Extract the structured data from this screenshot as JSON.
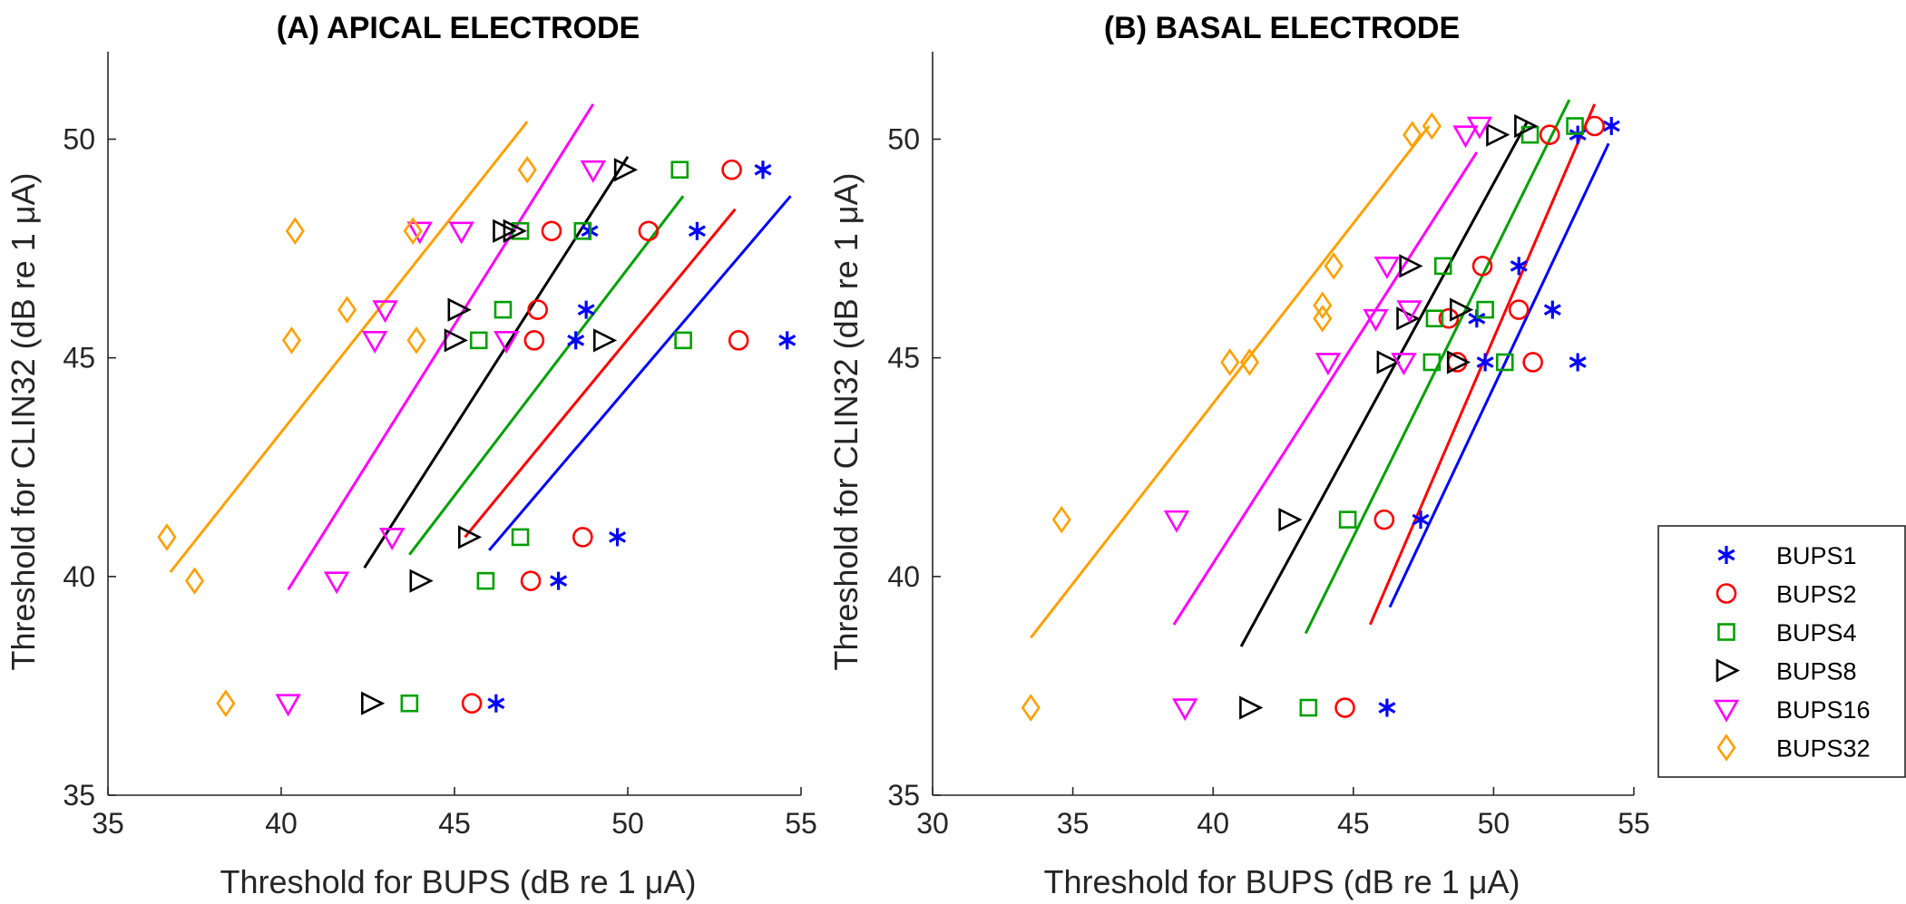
{
  "chart_data": [
    {
      "type": "scatter",
      "title": "(A) APICAL ELECTRODE",
      "xlabel": "Threshold for BUPS (dB re 1 μA)",
      "ylabel": "Threshold for CLIN32 (dB re 1 μA)",
      "xlim": [
        35,
        55
      ],
      "ylim": [
        35,
        52
      ],
      "xticks": [
        "35",
        "40",
        "45",
        "50",
        "55"
      ],
      "yticks": [
        "35",
        "40",
        "45",
        "50"
      ],
      "series": [
        {
          "name": "BUPS1",
          "color": "#0000FF",
          "marker": "asterisk",
          "points": [
            [
              53.9,
              49.3
            ],
            [
              48.9,
              47.9
            ],
            [
              52.0,
              47.9
            ],
            [
              48.8,
              46.1
            ],
            [
              48.5,
              45.4
            ],
            [
              54.6,
              45.4
            ],
            [
              49.7,
              40.9
            ],
            [
              48.0,
              39.9
            ],
            [
              46.2,
              37.1
            ]
          ],
          "fit_line": [
            [
              46.0,
              40.6
            ],
            [
              54.7,
              48.7
            ]
          ]
        },
        {
          "name": "BUPS2",
          "color": "#FF0000",
          "marker": "circle",
          "points": [
            [
              53.0,
              49.3
            ],
            [
              47.8,
              47.9
            ],
            [
              50.6,
              47.9
            ],
            [
              47.4,
              46.1
            ],
            [
              47.3,
              45.4
            ],
            [
              53.2,
              45.4
            ],
            [
              48.7,
              40.9
            ],
            [
              47.2,
              39.9
            ],
            [
              45.5,
              37.1
            ]
          ],
          "fit_line": [
            [
              45.3,
              40.9
            ],
            [
              53.1,
              48.4
            ]
          ]
        },
        {
          "name": "BUPS4",
          "color": "#00A000",
          "marker": "square",
          "points": [
            [
              51.5,
              49.3
            ],
            [
              48.7,
              47.9
            ],
            [
              46.9,
              47.9
            ],
            [
              46.4,
              46.1
            ],
            [
              45.7,
              45.4
            ],
            [
              51.6,
              45.4
            ],
            [
              46.9,
              40.9
            ],
            [
              45.9,
              39.9
            ],
            [
              43.7,
              37.1
            ]
          ],
          "fit_line": [
            [
              43.7,
              40.5
            ],
            [
              51.6,
              48.7
            ]
          ]
        },
        {
          "name": "BUPS8",
          "color": "#000000",
          "marker": "triangle-right",
          "points": [
            [
              49.9,
              49.3
            ],
            [
              46.4,
              47.9
            ],
            [
              46.7,
              47.9
            ],
            [
              45.1,
              46.1
            ],
            [
              45.0,
              45.4
            ],
            [
              49.3,
              45.4
            ],
            [
              45.4,
              40.9
            ],
            [
              44.0,
              39.9
            ],
            [
              42.6,
              37.1
            ]
          ],
          "fit_line": [
            [
              42.4,
              40.2
            ],
            [
              50.0,
              49.6
            ]
          ]
        },
        {
          "name": "BUPS16",
          "color": "#FF00FF",
          "marker": "triangle-down",
          "points": [
            [
              49.0,
              49.3
            ],
            [
              44.0,
              47.9
            ],
            [
              45.2,
              47.9
            ],
            [
              43.0,
              46.1
            ],
            [
              42.7,
              45.4
            ],
            [
              46.5,
              45.4
            ],
            [
              43.2,
              40.9
            ],
            [
              41.6,
              39.9
            ],
            [
              40.2,
              37.1
            ]
          ],
          "fit_line": [
            [
              40.2,
              39.7
            ],
            [
              49.0,
              50.8
            ]
          ]
        },
        {
          "name": "BUPS32",
          "color": "#FFA000",
          "marker": "diamond",
          "points": [
            [
              47.1,
              49.3
            ],
            [
              40.4,
              47.9
            ],
            [
              43.8,
              47.9
            ],
            [
              41.9,
              46.1
            ],
            [
              40.3,
              45.4
            ],
            [
              43.9,
              45.4
            ],
            [
              36.7,
              40.9
            ],
            [
              37.5,
              39.9
            ],
            [
              38.4,
              37.1
            ]
          ],
          "fit_line": [
            [
              36.8,
              40.1
            ],
            [
              47.1,
              50.4
            ]
          ]
        }
      ]
    },
    {
      "type": "scatter",
      "title": "(B) BASAL ELECTRODE",
      "xlabel": "Threshold for BUPS (dB re 1 μA)",
      "ylabel": "Threshold for CLIN32 (dB re 1 μA)",
      "xlim": [
        30,
        55
      ],
      "ylim": [
        35,
        52
      ],
      "xticks": [
        "30",
        "35",
        "40",
        "45",
        "50",
        "55"
      ],
      "yticks": [
        "35",
        "40",
        "45",
        "50"
      ],
      "legend_position": "right",
      "series": [
        {
          "name": "BUPS1",
          "color": "#0000FF",
          "marker": "asterisk",
          "points": [
            [
              54.2,
              50.3
            ],
            [
              53.0,
              50.1
            ],
            [
              50.9,
              47.1
            ],
            [
              52.1,
              46.1
            ],
            [
              49.4,
              45.9
            ],
            [
              49.7,
              44.9
            ],
            [
              53.0,
              44.9
            ],
            [
              47.4,
              41.3
            ],
            [
              46.2,
              37.0
            ]
          ],
          "fit_line": [
            [
              46.3,
              39.3
            ],
            [
              54.1,
              49.9
            ]
          ]
        },
        {
          "name": "BUPS2",
          "color": "#FF0000",
          "marker": "circle",
          "points": [
            [
              53.6,
              50.3
            ],
            [
              52.0,
              50.1
            ],
            [
              49.6,
              47.1
            ],
            [
              50.9,
              46.1
            ],
            [
              48.4,
              45.9
            ],
            [
              48.7,
              44.9
            ],
            [
              51.4,
              44.9
            ],
            [
              46.1,
              41.3
            ],
            [
              44.7,
              37.0
            ]
          ],
          "fit_line": [
            [
              45.6,
              38.9
            ],
            [
              53.6,
              50.8
            ]
          ]
        },
        {
          "name": "BUPS4",
          "color": "#00A000",
          "marker": "square",
          "points": [
            [
              52.9,
              50.3
            ],
            [
              51.3,
              50.1
            ],
            [
              48.2,
              47.1
            ],
            [
              49.7,
              46.1
            ],
            [
              47.9,
              45.9
            ],
            [
              47.8,
              44.9
            ],
            [
              50.4,
              44.9
            ],
            [
              44.8,
              41.3
            ],
            [
              43.4,
              37.0
            ]
          ],
          "fit_line": [
            [
              43.3,
              38.7
            ],
            [
              52.7,
              50.9
            ]
          ]
        },
        {
          "name": "BUPS8",
          "color": "#000000",
          "marker": "triangle-right",
          "points": [
            [
              51.1,
              50.3
            ],
            [
              50.1,
              50.1
            ],
            [
              47.0,
              47.1
            ],
            [
              48.8,
              46.1
            ],
            [
              46.9,
              45.9
            ],
            [
              46.2,
              44.9
            ],
            [
              48.7,
              44.9
            ],
            [
              42.7,
              41.3
            ],
            [
              41.3,
              37.0
            ]
          ],
          "fit_line": [
            [
              41.0,
              38.4
            ],
            [
              51.2,
              50.4
            ]
          ]
        },
        {
          "name": "BUPS16",
          "color": "#FF00FF",
          "marker": "triangle-down",
          "points": [
            [
              49.5,
              50.3
            ],
            [
              49.0,
              50.1
            ],
            [
              46.2,
              47.1
            ],
            [
              47.0,
              46.1
            ],
            [
              45.8,
              45.9
            ],
            [
              44.1,
              44.9
            ],
            [
              46.8,
              44.9
            ],
            [
              38.7,
              41.3
            ],
            [
              39.0,
              37.0
            ]
          ],
          "fit_line": [
            [
              38.6,
              38.9
            ],
            [
              49.4,
              49.7
            ]
          ]
        },
        {
          "name": "BUPS32",
          "color": "#FFA000",
          "marker": "diamond",
          "points": [
            [
              47.8,
              50.3
            ],
            [
              47.1,
              50.1
            ],
            [
              44.3,
              47.1
            ],
            [
              43.9,
              46.2
            ],
            [
              43.9,
              45.9
            ],
            [
              40.6,
              44.9
            ],
            [
              41.3,
              44.9
            ],
            [
              34.6,
              41.3
            ],
            [
              33.5,
              37.0
            ]
          ],
          "fit_line": [
            [
              33.5,
              38.6
            ],
            [
              47.7,
              50.3
            ]
          ]
        }
      ]
    }
  ]
}
